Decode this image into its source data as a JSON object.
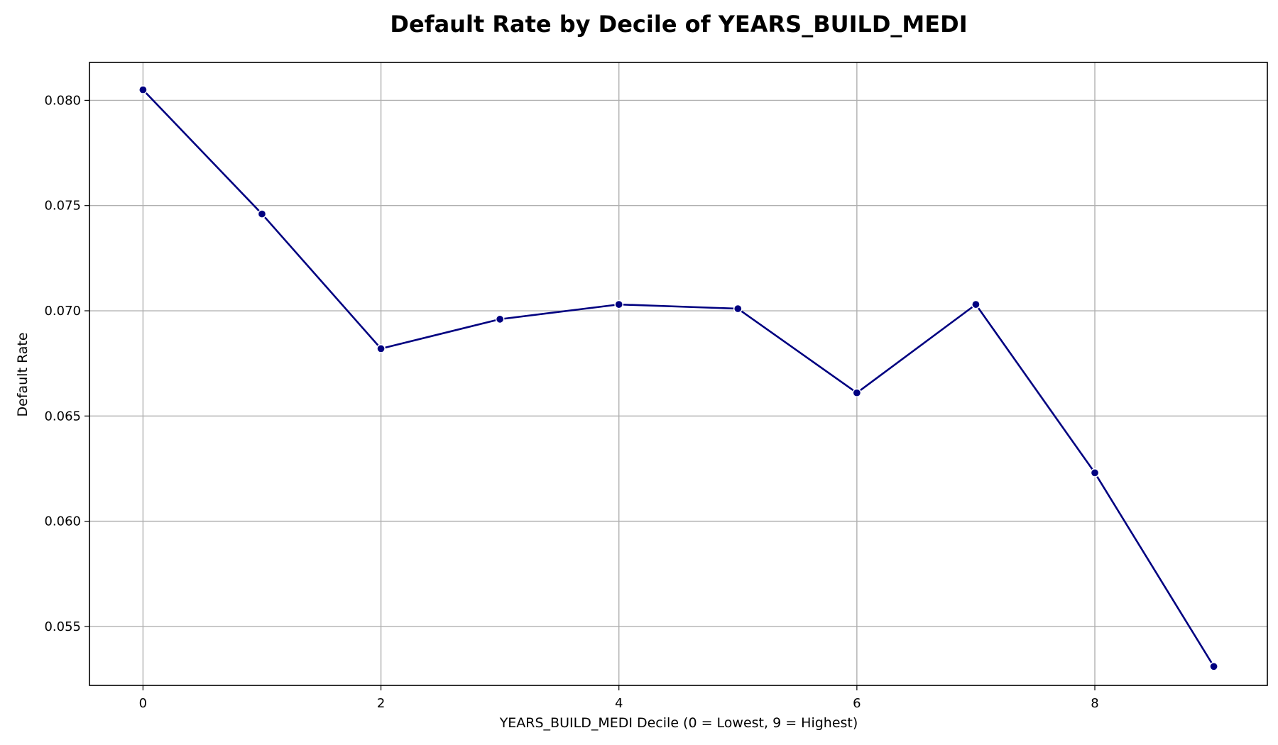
{
  "chart_data": {
    "type": "line",
    "title": "Default Rate by Decile of YEARS_BUILD_MEDI",
    "xlabel": "YEARS_BUILD_MEDI Decile (0 = Lowest, 9 = Highest)",
    "ylabel": "Default Rate",
    "x": [
      0,
      1,
      2,
      3,
      4,
      5,
      6,
      7,
      8,
      9
    ],
    "series": [
      {
        "values": [
          0.0805,
          0.0746,
          0.0682,
          0.0696,
          0.0703,
          0.0701,
          0.0661,
          0.0703,
          0.0623,
          0.0531
        ],
        "color": "#000080"
      }
    ],
    "xlim": [
      -0.45,
      9.45
    ],
    "ylim": [
      0.0522,
      0.0818
    ],
    "xticks": [
      0,
      2,
      4,
      6,
      8
    ],
    "xtick_labels": [
      "0",
      "2",
      "4",
      "6",
      "8"
    ],
    "yticks": [
      0.055,
      0.06,
      0.065,
      0.07,
      0.075,
      0.08
    ],
    "ytick_labels": [
      "0.055",
      "0.060",
      "0.065",
      "0.070",
      "0.075",
      "0.080"
    ],
    "grid": true,
    "markers": true
  }
}
